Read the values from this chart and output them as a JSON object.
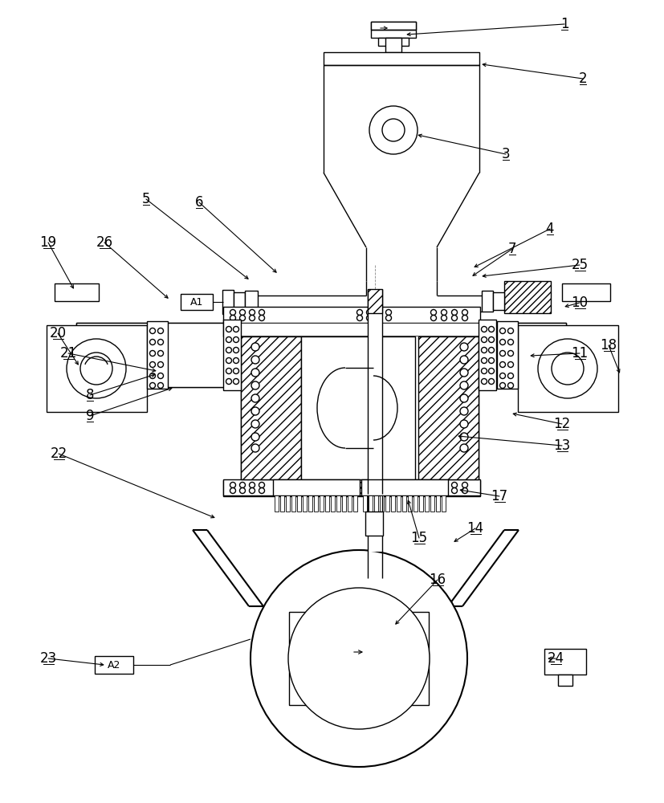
{
  "bg_color": "#ffffff",
  "lc": "#000000",
  "lw": 1.0,
  "lw2": 1.5,
  "fs": 12,
  "labels_info": [
    [
      1,
      703,
      30,
      506,
      43
    ],
    [
      2,
      726,
      98,
      600,
      80
    ],
    [
      3,
      630,
      192,
      520,
      168
    ],
    [
      4,
      685,
      285,
      590,
      333
    ],
    [
      5,
      182,
      248,
      310,
      348
    ],
    [
      6,
      248,
      252,
      345,
      340
    ],
    [
      7,
      638,
      310,
      588,
      344
    ],
    [
      8,
      112,
      492,
      194,
      466
    ],
    [
      9,
      112,
      518,
      215,
      483
    ],
    [
      10,
      722,
      377,
      703,
      382
    ],
    [
      11,
      722,
      440,
      660,
      443
    ],
    [
      12,
      700,
      528,
      638,
      515
    ],
    [
      13,
      700,
      555,
      570,
      543
    ],
    [
      14,
      592,
      658,
      565,
      675
    ],
    [
      15,
      522,
      670,
      508,
      622
    ],
    [
      16,
      545,
      722,
      492,
      778
    ],
    [
      17,
      622,
      618,
      572,
      610
    ],
    [
      18,
      758,
      430,
      772,
      465
    ],
    [
      19,
      60,
      302,
      92,
      360
    ],
    [
      20,
      72,
      415,
      98,
      455
    ],
    [
      21,
      85,
      440,
      195,
      462
    ],
    [
      22,
      73,
      565,
      268,
      645
    ],
    [
      23,
      60,
      820,
      130,
      828
    ],
    [
      24,
      692,
      820,
      682,
      820
    ],
    [
      25,
      722,
      330,
      600,
      344
    ],
    [
      26,
      130,
      302,
      210,
      372
    ]
  ]
}
